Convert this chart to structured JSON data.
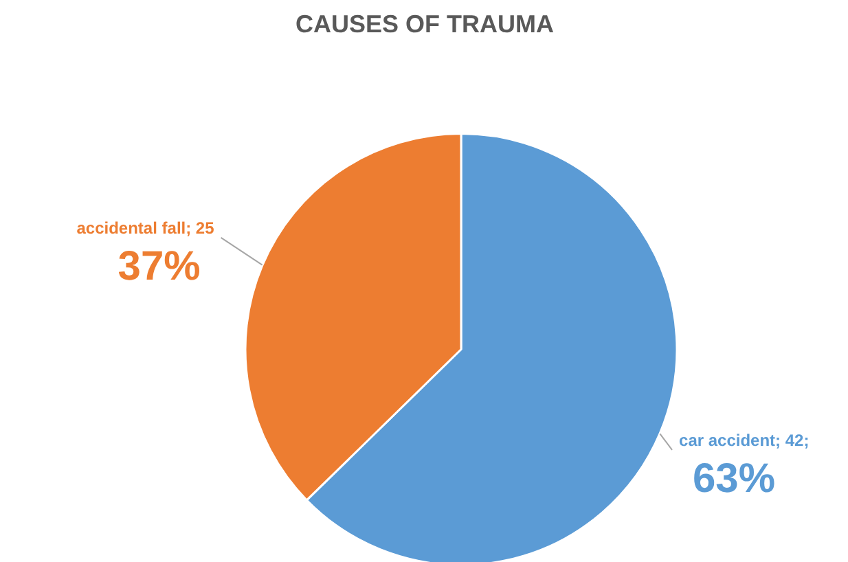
{
  "chart_data": {
    "type": "pie",
    "title": "CAUSES OF TRAUMA",
    "categories": [
      "car accident",
      "accidental fall"
    ],
    "values": [
      42,
      25
    ],
    "colors": [
      "#5b9bd5",
      "#ed7d31"
    ],
    "value_labels": [
      "42;",
      "25"
    ],
    "annotations": [
      "63%",
      "37%"
    ]
  }
}
